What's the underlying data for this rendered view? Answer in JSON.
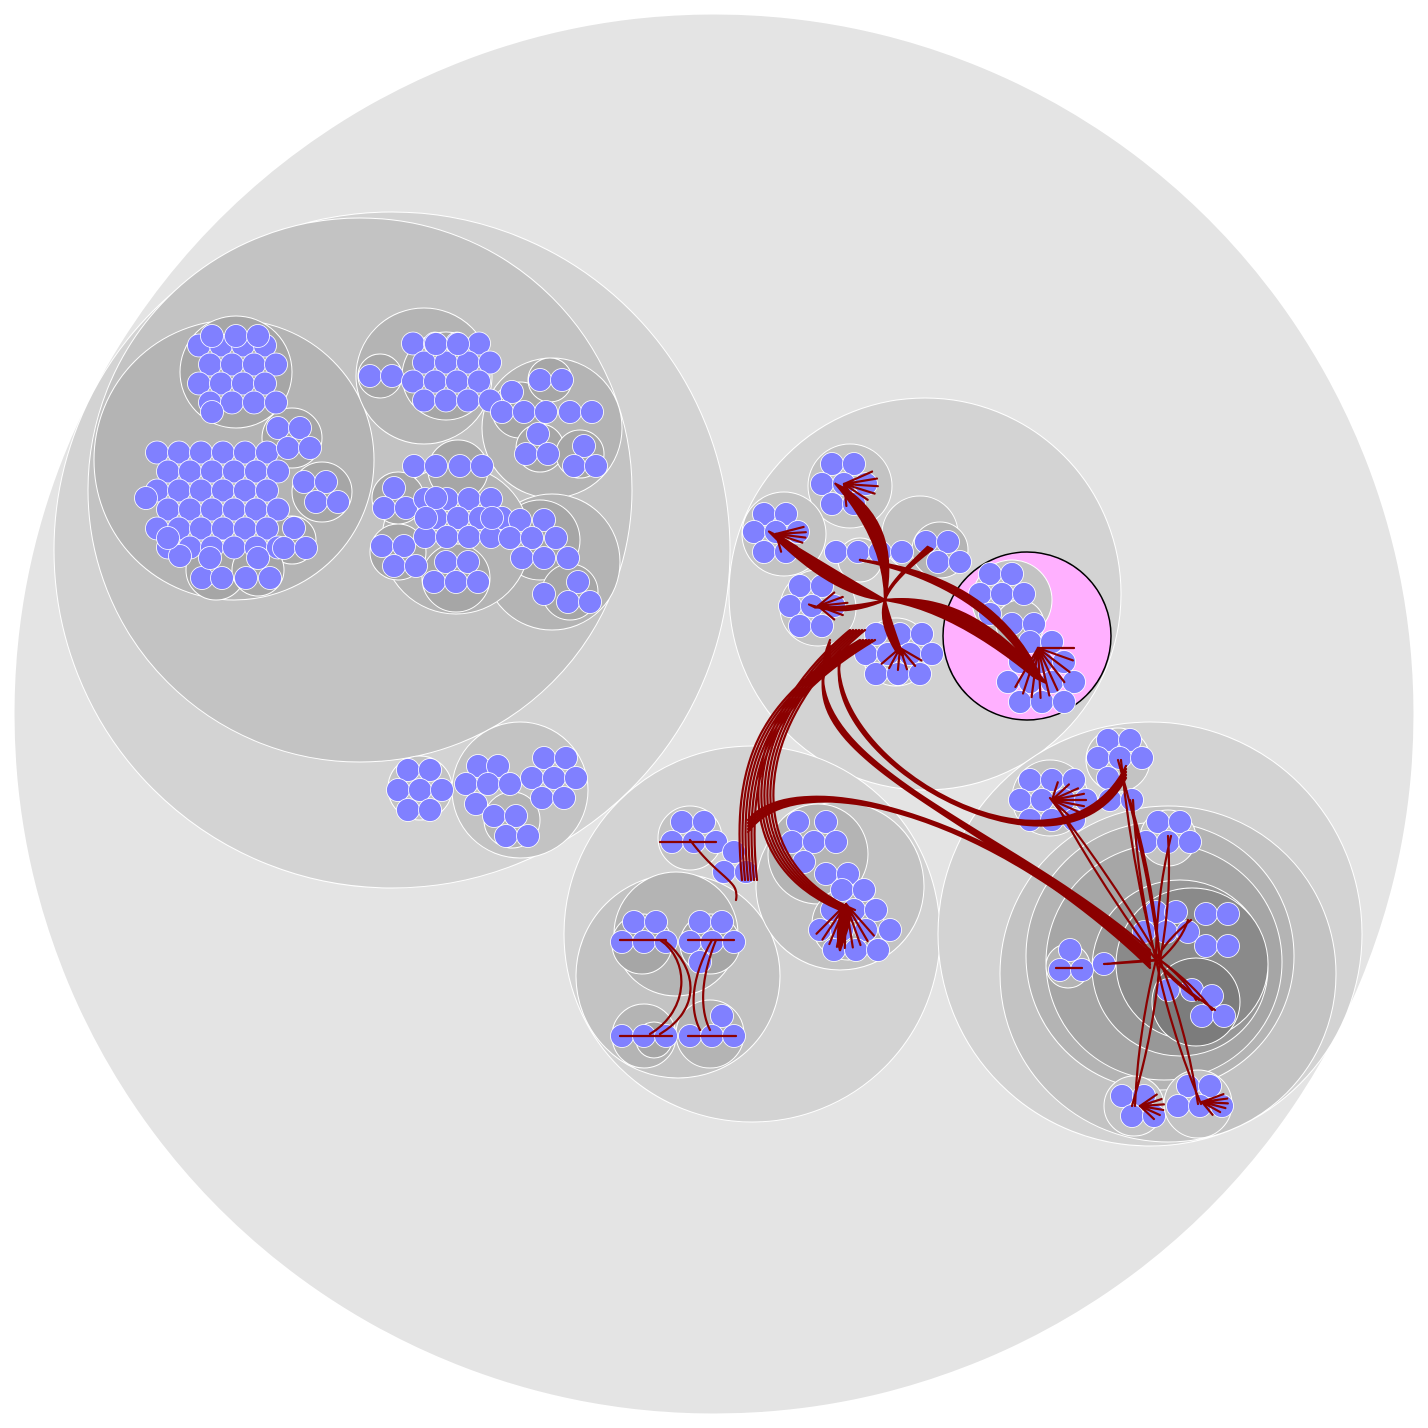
{
  "view": {
    "type": "hierarchical-circle-packing-with-edge-bundling",
    "colors": {
      "background": "#ffffff",
      "level0": "#e4e4e4",
      "level1": "#d3d3d3",
      "level2": "#c3c3c3",
      "level3": "#b4b4b4",
      "level4": "#a6a6a6",
      "level5": "#989898",
      "level6": "#8a8a8a",
      "level7": "#7c7c7c",
      "leaf": "#8080ff",
      "edge": "#8b0000",
      "selected": "#ffb0ff",
      "selected_border": "#000000"
    },
    "selected_cluster": "module-right-top-pink"
  }
}
